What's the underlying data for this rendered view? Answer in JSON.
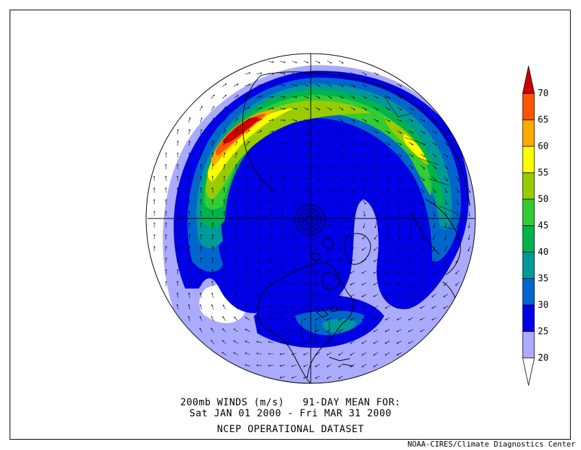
{
  "caption": {
    "line1": "200mb WINDS (m/s)   91-DAY MEAN FOR:",
    "line2": "Sat JAN 01 2000 - Fri MAR 31 2000",
    "dataset": "NCEP OPERATIONAL DATASET"
  },
  "credit": "NOAA-CIRES/Climate Diagnostics Center",
  "colorbar": {
    "levels": [
      "20",
      "25",
      "30",
      "35",
      "40",
      "45",
      "50",
      "55",
      "60",
      "65",
      "70"
    ],
    "colors": [
      "#ffffff",
      "#aaaaff",
      "#0000e6",
      "#0066cc",
      "#009999",
      "#00b34d",
      "#33cc33",
      "#99cc00",
      "#ffff00",
      "#ffaa00",
      "#ff5500",
      "#cc0000"
    ]
  },
  "map": {
    "projection": "north-polar-stereographic",
    "variable": "200mb wind speed and vectors"
  }
}
